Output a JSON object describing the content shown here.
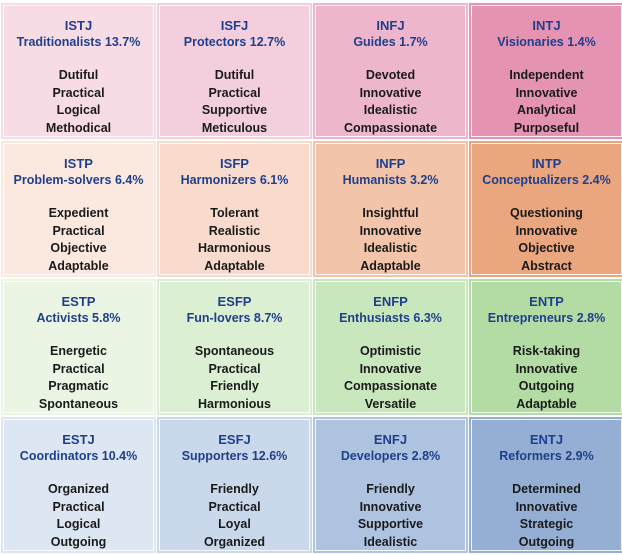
{
  "colors": {
    "row1": [
      "#f7dce6",
      "#f3cfde",
      "#eeb6cc",
      "#e593b3"
    ],
    "row2": [
      "#fbe9e0",
      "#f8dbcc",
      "#f2c4a9",
      "#eaa67f"
    ],
    "row3": [
      "#eaf6e3",
      "#dbefd2",
      "#c9e7bd",
      "#b2dca4"
    ],
    "row4": [
      "#dde7f3",
      "#cad8ec",
      "#aec3e0",
      "#94afd3"
    ],
    "title_color": "#1f3f8c"
  },
  "cells": [
    {
      "type": "ISTJ",
      "label": "Traditionalists 13.7%",
      "traits": [
        "Dutiful",
        "Practical",
        "Logical",
        "Methodical"
      ]
    },
    {
      "type": "ISFJ",
      "label": "Protectors 12.7%",
      "traits": [
        "Dutiful",
        "Practical",
        "Supportive",
        "Meticulous"
      ]
    },
    {
      "type": "INFJ",
      "label": "Guides 1.7%",
      "traits": [
        "Devoted",
        "Innovative",
        "Idealistic",
        "Compassionate"
      ]
    },
    {
      "type": "INTJ",
      "label": "Visionaries 1.4%",
      "traits": [
        "Independent",
        "Innovative",
        "Analytical",
        "Purposeful"
      ]
    },
    {
      "type": "ISTP",
      "label": "Problem-solvers 6.4%",
      "traits": [
        "Expedient",
        "Practical",
        "Objective",
        "Adaptable"
      ]
    },
    {
      "type": "ISFP",
      "label": "Harmonizers 6.1%",
      "traits": [
        "Tolerant",
        "Realistic",
        "Harmonious",
        "Adaptable"
      ]
    },
    {
      "type": "INFP",
      "label": "Humanists 3.2%",
      "traits": [
        "Insightful",
        "Innovative",
        "Idealistic",
        "Adaptable"
      ]
    },
    {
      "type": "INTP",
      "label": "Conceptualizers 2.4%",
      "traits": [
        "Questioning",
        "Innovative",
        "Objective",
        "Abstract"
      ]
    },
    {
      "type": "ESTP",
      "label": "Activists 5.8%",
      "traits": [
        "Energetic",
        "Practical",
        "Pragmatic",
        "Spontaneous"
      ]
    },
    {
      "type": "ESFP",
      "label": "Fun-lovers 8.7%",
      "traits": [
        "Spontaneous",
        "Practical",
        "Friendly",
        "Harmonious"
      ]
    },
    {
      "type": "ENFP",
      "label": "Enthusiasts 6.3%",
      "traits": [
        "Optimistic",
        "Innovative",
        "Compassionate",
        "Versatile"
      ]
    },
    {
      "type": "ENTP",
      "label": "Entrepreneurs 2.8%",
      "traits": [
        "Risk-taking",
        "Innovative",
        "Outgoing",
        "Adaptable"
      ]
    },
    {
      "type": "ESTJ",
      "label": "Coordinators 10.4%",
      "traits": [
        "Organized",
        "Practical",
        "Logical",
        "Outgoing"
      ]
    },
    {
      "type": "ESFJ",
      "label": "Supporters 12.6%",
      "traits": [
        "Friendly",
        "Practical",
        "Loyal",
        "Organized"
      ]
    },
    {
      "type": "ENFJ",
      "label": "Developers 2.8%",
      "traits": [
        "Friendly",
        "Innovative",
        "Supportive",
        "Idealistic"
      ]
    },
    {
      "type": "ENTJ",
      "label": "Reformers 2.9%",
      "traits": [
        "Determined",
        "Innovative",
        "Strategic",
        "Outgoing"
      ]
    }
  ]
}
